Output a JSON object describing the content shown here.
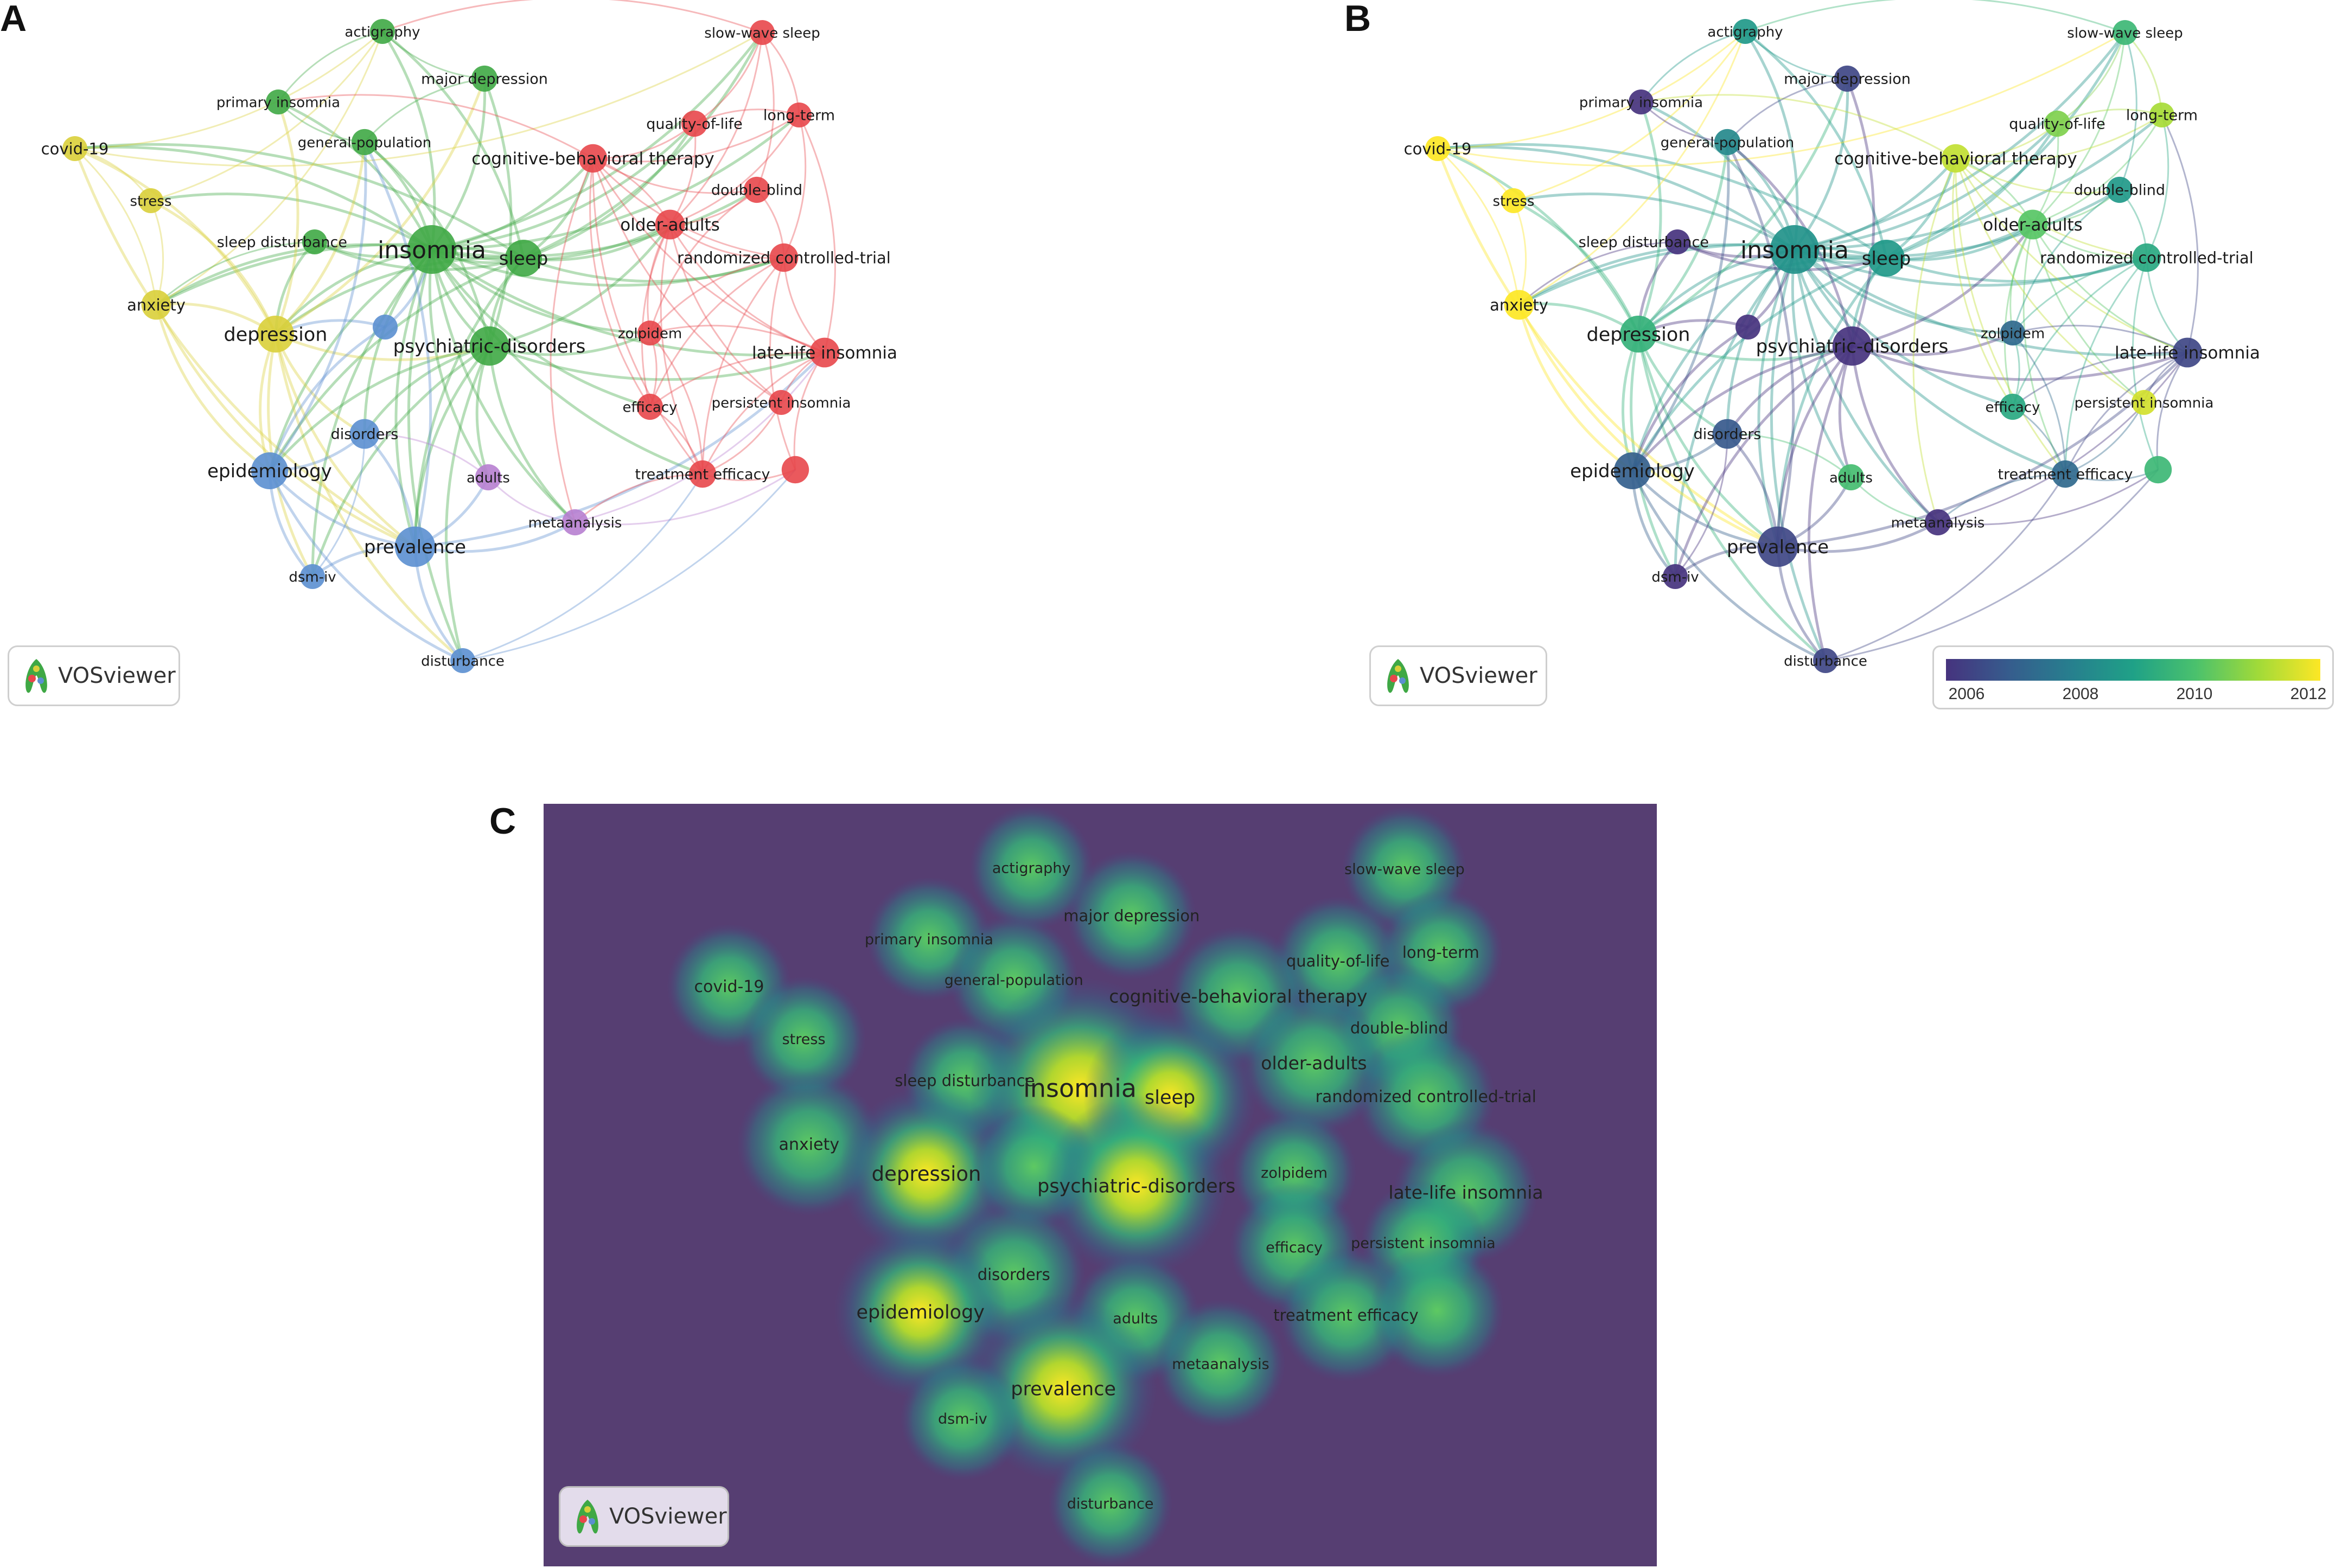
{
  "panels": [
    {
      "letter": "A"
    },
    {
      "letter": "B"
    },
    {
      "letter": "C"
    }
  ],
  "badge_label": "VOSviewer",
  "timeline": {
    "ticks": [
      "2006",
      "2008",
      "2010",
      "2012"
    ],
    "colors": [
      "#46337e",
      "#365c8d",
      "#277f8e",
      "#1fa187",
      "#4ac16d",
      "#a0da39",
      "#fde725"
    ]
  },
  "cluster_colors": {
    "red": "#e8474b",
    "green": "#3fa845",
    "blue": "#5b8fd0",
    "yellow": "#d9cf3a",
    "purple": "#b77fd0"
  },
  "heat_background": "#563e72",
  "nodes": [
    {
      "id": "actigraphy",
      "label": "actigraphy",
      "cluster": "green",
      "year": 2009,
      "w": 1,
      "fs": 1
    },
    {
      "id": "slow-wave-sleep",
      "label": "slow-wave sleep",
      "cluster": "red",
      "year": 2010,
      "w": 1,
      "fs": 1
    },
    {
      "id": "major-depression",
      "label": "major depression",
      "cluster": "green",
      "year": 2006.5,
      "w": 1.1,
      "fs": 1.05
    },
    {
      "id": "primary-insomnia",
      "label": "primary insomnia",
      "cluster": "green",
      "year": 2006,
      "w": 1,
      "fs": 1
    },
    {
      "id": "quality-of-life",
      "label": "quality-of-life",
      "cluster": "red",
      "year": 2011,
      "w": 1.1,
      "fs": 1.05
    },
    {
      "id": "long-term",
      "label": "long-term",
      "cluster": "red",
      "year": 2011.5,
      "w": 1,
      "fs": 1.05
    },
    {
      "id": "covid-19",
      "label": "covid-19",
      "cluster": "yellow",
      "year": 2012.5,
      "w": 1,
      "fs": 1.1
    },
    {
      "id": "general-population",
      "label": "general-population",
      "cluster": "green",
      "year": 2008.5,
      "w": 1.1,
      "fs": 1
    },
    {
      "id": "cognitive-behavioral-therapy",
      "label": "cognitive-behavioral therapy",
      "cluster": "red",
      "year": 2011.8,
      "w": 1.3,
      "fs": 1.2
    },
    {
      "id": "double-blind",
      "label": "double-blind",
      "cluster": "red",
      "year": 2009,
      "w": 1.1,
      "fs": 1.05
    },
    {
      "id": "stress",
      "label": "stress",
      "cluster": "yellow",
      "year": 2012.5,
      "w": 1,
      "fs": 1
    },
    {
      "id": "sleep-disturbance",
      "label": "sleep disturbance",
      "cluster": "green",
      "year": 2006,
      "w": 1,
      "fs": 1.05
    },
    {
      "id": "insomnia",
      "label": "insomnia",
      "cluster": "green",
      "year": 2008.8,
      "w": 3,
      "fs": 1.7
    },
    {
      "id": "sleep",
      "label": "sleep",
      "cluster": "green",
      "year": 2009,
      "w": 2,
      "fs": 1.3
    },
    {
      "id": "older-adults",
      "label": "older-adults",
      "cluster": "red",
      "year": 2010.5,
      "w": 1.4,
      "fs": 1.2
    },
    {
      "id": "randomized-controlled-trial",
      "label": "randomized controlled-trial",
      "cluster": "red",
      "year": 2009.5,
      "w": 1.3,
      "fs": 1.1
    },
    {
      "id": "anxiety",
      "label": "anxiety",
      "cluster": "yellow",
      "year": 2012.5,
      "w": 1.4,
      "fs": 1.1
    },
    {
      "id": "depression",
      "label": "depression",
      "cluster": "yellow",
      "year": 2009.8,
      "w": 2,
      "fs": 1.35
    },
    {
      "id": "unlabeled-node",
      "label": "",
      "cluster": "blue",
      "year": 2006,
      "w": 1,
      "fs": 0
    },
    {
      "id": "zolpidem",
      "label": "zolpidem",
      "cluster": "red",
      "year": 2007.5,
      "w": 1,
      "fs": 1
    },
    {
      "id": "psychiatric-disorders",
      "label": "psychiatric-disorders",
      "cluster": "green",
      "year": 2006,
      "w": 2.2,
      "fs": 1.3
    },
    {
      "id": "late-life-insomnia",
      "label": "late-life insomnia",
      "cluster": "red",
      "year": 2006.5,
      "w": 1.4,
      "fs": 1.2
    },
    {
      "id": "efficacy",
      "label": "efficacy",
      "cluster": "red",
      "year": 2009.5,
      "w": 1.1,
      "fs": 1
    },
    {
      "id": "persistent-insomnia",
      "label": "persistent insomnia",
      "cluster": "red",
      "year": 2012,
      "w": 1,
      "fs": 1
    },
    {
      "id": "disorders",
      "label": "disorders",
      "cluster": "blue",
      "year": 2007,
      "w": 1.4,
      "fs": 1.05
    },
    {
      "id": "epidemiology",
      "label": "epidemiology",
      "cluster": "blue",
      "year": 2007.2,
      "w": 2,
      "fs": 1.3
    },
    {
      "id": "adults",
      "label": "adults",
      "cluster": "purple",
      "year": 2010.2,
      "w": 1.1,
      "fs": 1
    },
    {
      "id": "treatment-efficacy",
      "label": "treatment efficacy",
      "cluster": "red",
      "year": 2007.5,
      "w": 1.2,
      "fs": 1.05
    },
    {
      "id": "unlabeled-node-2",
      "label": "",
      "cluster": "red",
      "year": 2010,
      "w": 1.2,
      "fs": 0
    },
    {
      "id": "metaanalysis",
      "label": "metaanalysis",
      "cluster": "purple",
      "year": 2006,
      "w": 1.1,
      "fs": 1
    },
    {
      "id": "prevalence",
      "label": "prevalence",
      "cluster": "blue",
      "year": 2006.5,
      "w": 2.3,
      "fs": 1.3
    },
    {
      "id": "dsm-iv",
      "label": "dsm-iv",
      "cluster": "blue",
      "year": 2006,
      "w": 1,
      "fs": 1
    },
    {
      "id": "disturbance",
      "label": "disturbance",
      "cluster": "blue",
      "year": 2006.5,
      "w": 1,
      "fs": 1
    }
  ]
}
